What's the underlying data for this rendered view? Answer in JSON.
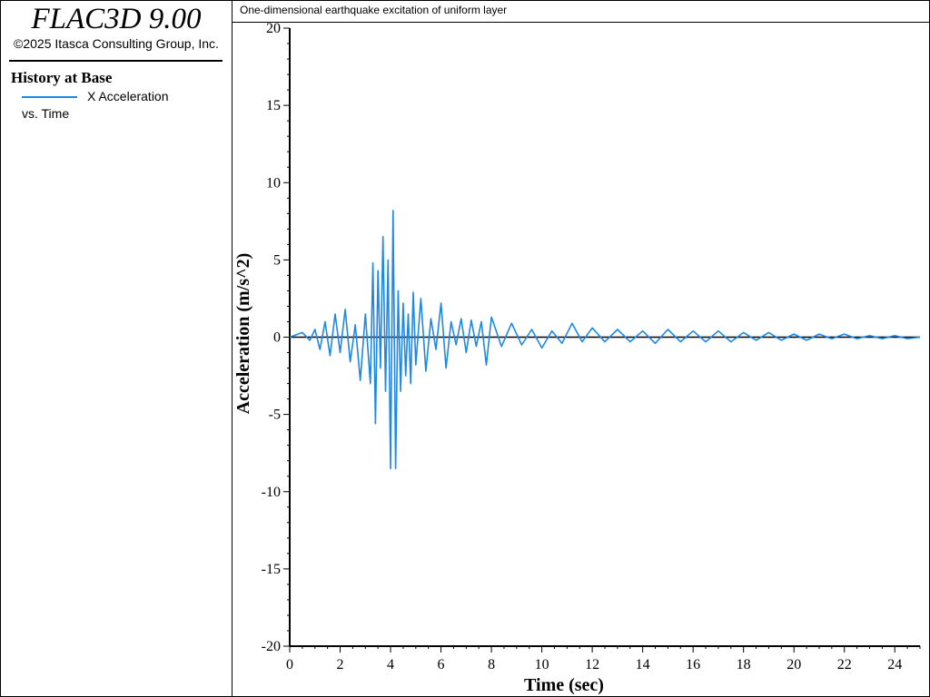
{
  "sidebar": {
    "app_title": "FLAC3D 9.00",
    "copyright": "©2025 Itasca Consulting Group, Inc.",
    "history_title": "History at Base",
    "legend_label": "X Acceleration",
    "vs_label": "vs. Time"
  },
  "plot_title": "One-dimensional earthquake excitation of uniform layer",
  "colors": {
    "series": "#1e88e5",
    "axis": "#000000",
    "zero_line": "#000000"
  },
  "chart_data": {
    "type": "line",
    "title": "One-dimensional earthquake excitation of uniform layer",
    "xlabel": "Time (sec)",
    "ylabel": "Acceleration (m/s^2)",
    "xlim": [
      0,
      25
    ],
    "ylim": [
      -20,
      20
    ],
    "x_ticks": [
      0,
      2,
      4,
      6,
      8,
      10,
      12,
      14,
      16,
      18,
      20,
      22,
      24
    ],
    "y_ticks": [
      20,
      15,
      10,
      5,
      0,
      -5,
      -10,
      -15,
      -20
    ],
    "grid": false,
    "zero_line": true,
    "series": [
      {
        "name": "X Acceleration",
        "x": [
          0,
          0.5,
          0.8,
          1.0,
          1.2,
          1.4,
          1.6,
          1.8,
          2.0,
          2.2,
          2.4,
          2.6,
          2.8,
          3.0,
          3.2,
          3.3,
          3.4,
          3.5,
          3.6,
          3.7,
          3.8,
          3.9,
          4.0,
          4.1,
          4.2,
          4.3,
          4.4,
          4.5,
          4.6,
          4.7,
          4.8,
          4.9,
          5.0,
          5.2,
          5.4,
          5.6,
          5.8,
          6.0,
          6.2,
          6.4,
          6.6,
          6.8,
          7.0,
          7.2,
          7.4,
          7.6,
          7.8,
          8.0,
          8.4,
          8.8,
          9.2,
          9.6,
          10.0,
          10.4,
          10.8,
          11.2,
          11.6,
          12.0,
          12.5,
          13.0,
          13.5,
          14.0,
          14.5,
          15.0,
          15.5,
          16.0,
          16.5,
          17.0,
          17.5,
          18.0,
          18.5,
          19.0,
          19.5,
          20.0,
          20.5,
          21.0,
          21.5,
          22.0,
          22.5,
          23.0,
          23.5,
          24.0,
          24.5,
          25.0
        ],
        "values": [
          0,
          0.3,
          -0.2,
          0.5,
          -0.8,
          1.0,
          -1.2,
          1.5,
          -1.0,
          1.8,
          -1.6,
          0.8,
          -2.8,
          1.5,
          -3.0,
          4.8,
          -5.6,
          4.3,
          -2.0,
          6.5,
          -3.5,
          5.0,
          -8.5,
          8.2,
          -8.5,
          3.0,
          -3.5,
          2.2,
          -2.5,
          1.5,
          -3.0,
          2.9,
          -1.8,
          2.5,
          -2.2,
          1.2,
          -0.8,
          2.2,
          -2.0,
          1.0,
          -0.5,
          1.2,
          -1.0,
          1.1,
          -0.6,
          1.0,
          -1.8,
          1.3,
          -0.6,
          0.9,
          -0.5,
          0.5,
          -0.7,
          0.4,
          -0.4,
          0.9,
          -0.3,
          0.6,
          -0.3,
          0.5,
          -0.3,
          0.4,
          -0.4,
          0.5,
          -0.3,
          0.4,
          -0.3,
          0.4,
          -0.3,
          0.3,
          -0.2,
          0.3,
          -0.2,
          0.2,
          -0.2,
          0.2,
          -0.1,
          0.2,
          -0.1,
          0.1,
          -0.1,
          0.1,
          -0.1,
          0.0
        ]
      }
    ]
  }
}
